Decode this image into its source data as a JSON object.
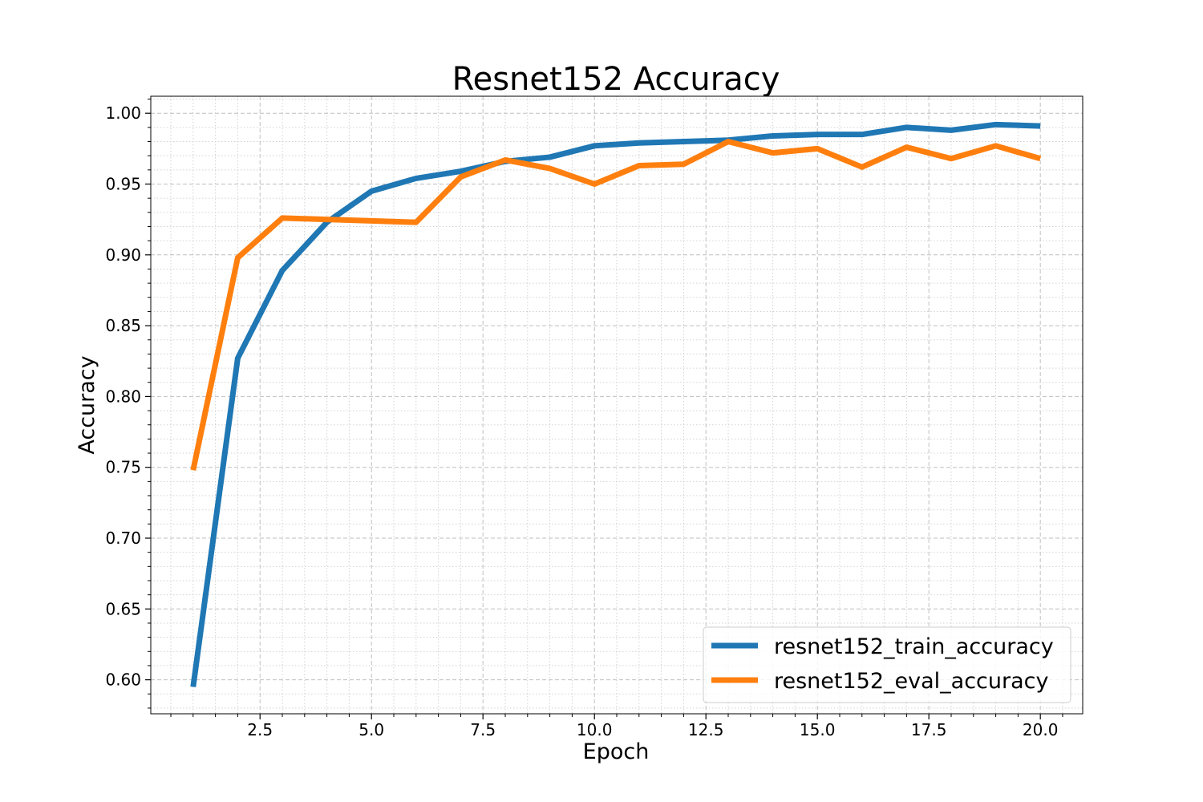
{
  "chart_data": {
    "type": "line",
    "title": "Resnet152 Accuracy",
    "xlabel": "Epoch",
    "ylabel": "Accuracy",
    "x": [
      1,
      2,
      3,
      4,
      5,
      6,
      7,
      8,
      9,
      10,
      11,
      12,
      13,
      14,
      15,
      16,
      17,
      18,
      19,
      20
    ],
    "xlim": [
      0.05,
      20.95
    ],
    "ylim": [
      0.576,
      1.012
    ],
    "xticks": [
      2.5,
      5.0,
      7.5,
      10.0,
      12.5,
      15.0,
      17.5,
      20.0
    ],
    "xtick_labels": [
      "2.5",
      "5.0",
      "7.5",
      "10.0",
      "12.5",
      "15.0",
      "17.5",
      "20.0"
    ],
    "yticks": [
      0.6,
      0.65,
      0.7,
      0.75,
      0.8,
      0.85,
      0.9,
      0.95,
      1.0
    ],
    "ytick_labels": [
      "0.60",
      "0.65",
      "0.70",
      "0.75",
      "0.80",
      "0.85",
      "0.90",
      "0.95",
      "1.00"
    ],
    "grid": true,
    "legend_position": "lower-right",
    "series": [
      {
        "name": "resnet152_train_accuracy",
        "color": "#1f77b4",
        "values": [
          0.595,
          0.827,
          0.889,
          0.923,
          0.945,
          0.954,
          0.959,
          0.966,
          0.969,
          0.977,
          0.979,
          0.98,
          0.981,
          0.984,
          0.985,
          0.985,
          0.99,
          0.988,
          0.992,
          0.991
        ]
      },
      {
        "name": "resnet152_eval_accuracy",
        "color": "#ff7f0e",
        "values": [
          0.748,
          0.898,
          0.926,
          0.925,
          0.924,
          0.923,
          0.955,
          0.967,
          0.961,
          0.95,
          0.963,
          0.964,
          0.98,
          0.972,
          0.975,
          0.962,
          0.976,
          0.968,
          0.977,
          0.968
        ]
      }
    ]
  }
}
